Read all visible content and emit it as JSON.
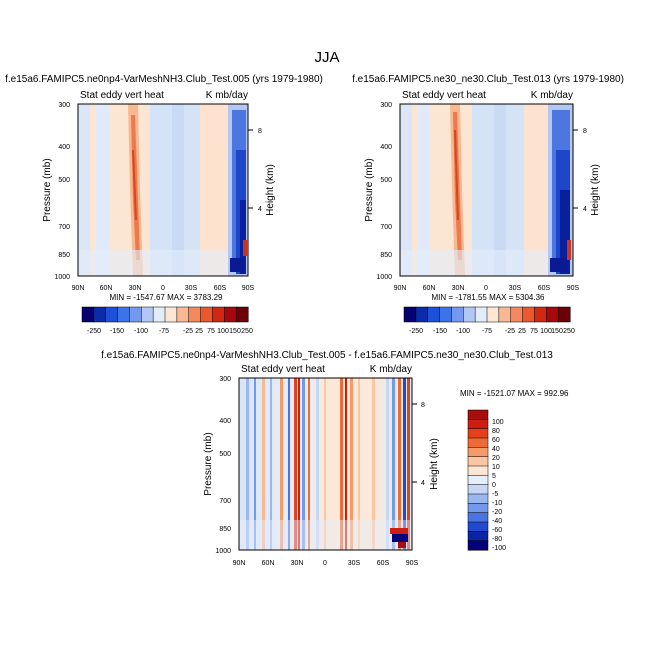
{
  "figure": {
    "title": "JJA"
  },
  "chart_data": [
    {
      "type": "heatmap",
      "title": "f.e15a6.FAMIPC5.ne0np4-VarMeshNH3.Club_Test.005 (yrs 1979-1980)",
      "left_string": "Stat eddy vert heat",
      "right_string": "K mb/day",
      "xlabel": "",
      "ylabel": "Pressure (mb)",
      "y2label": "Height (km)",
      "x_ticks": [
        "90N",
        "60N",
        "30N",
        "0",
        "30S",
        "60S",
        "90S"
      ],
      "y_ticks": [
        "300",
        "400",
        "500",
        "700",
        "850",
        "1000"
      ],
      "y2_ticks": [
        "8",
        "4"
      ],
      "min_max_text": "MIN = -1547.67  MAX = 3783.29",
      "colorbar_labels": [
        "-250",
        "-150",
        "-100",
        "-75",
        "-25",
        "25",
        "75",
        "100",
        "150",
        "250"
      ],
      "levels": [
        -250,
        -150,
        -100,
        -75,
        -25,
        25,
        75,
        100,
        150,
        250
      ]
    },
    {
      "type": "heatmap",
      "title": "f.e15a6.FAMIPC5.ne30_ne30.Club_Test.013 (yrs 1979-1980)",
      "left_string": "Stat eddy vert heat",
      "right_string": "K mb/day",
      "xlabel": "",
      "ylabel": "Pressure (mb)",
      "y2label": "Height (km)",
      "x_ticks": [
        "90N",
        "60N",
        "30N",
        "0",
        "30S",
        "60S",
        "90S"
      ],
      "y_ticks": [
        "300",
        "400",
        "500",
        "700",
        "850",
        "1000"
      ],
      "y2_ticks": [
        "8",
        "4"
      ],
      "min_max_text": "MIN = -1781.55  MAX = 5304.36",
      "colorbar_labels": [
        "-250",
        "-150",
        "-100",
        "-75",
        "-25",
        "25",
        "75",
        "100",
        "150",
        "250"
      ],
      "levels": [
        -250,
        -150,
        -100,
        -75,
        -25,
        25,
        75,
        100,
        150,
        250
      ]
    },
    {
      "type": "heatmap",
      "title": "f.e15a6.FAMIPC5.ne0np4-VarMeshNH3.Club_Test.005 - f.e15a6.FAMIPC5.ne30_ne30.Club_Test.013",
      "left_string": "Stat eddy vert heat",
      "right_string": "K mb/day",
      "xlabel": "",
      "ylabel": "Pressure (mb)",
      "y2label": "Height (km)",
      "x_ticks": [
        "90N",
        "60N",
        "30N",
        "0",
        "30S",
        "60S",
        "90S"
      ],
      "y_ticks": [
        "300",
        "400",
        "500",
        "700",
        "850",
        "1000"
      ],
      "y2_ticks": [
        "8",
        "4"
      ],
      "min_max_text": "MIN = -1521.07  MAX = 992.96",
      "colorbar_labels": [
        "100",
        "80",
        "60",
        "40",
        "20",
        "10",
        "5",
        "0",
        "-5",
        "-10",
        "-20",
        "-40",
        "-60",
        "-80",
        "-100"
      ],
      "levels": [
        100,
        80,
        60,
        40,
        20,
        10,
        5,
        0,
        -5,
        -10,
        -20,
        -40,
        -60,
        -80,
        -100
      ]
    }
  ],
  "colors": {
    "top_colorbar": [
      "#08006e",
      "#0b2ca8",
      "#1c51d6",
      "#3d73e8",
      "#7497ef",
      "#b2c7f5",
      "#e3ecfa",
      "#fde6d2",
      "#fbb895",
      "#f5885f",
      "#e9582f",
      "#d02813",
      "#a6080e",
      "#6c0006"
    ],
    "diff_colorbar": [
      "#a60d0d",
      "#cc1f12",
      "#e4401c",
      "#f06a33",
      "#f79a6a",
      "#fbc6a3",
      "#fde6d2",
      "#e6eefb",
      "#c6d6f5",
      "#9cb7ef",
      "#7499ec",
      "#4b74e2",
      "#2149d0",
      "#0b24a6",
      "#06007a"
    ]
  }
}
